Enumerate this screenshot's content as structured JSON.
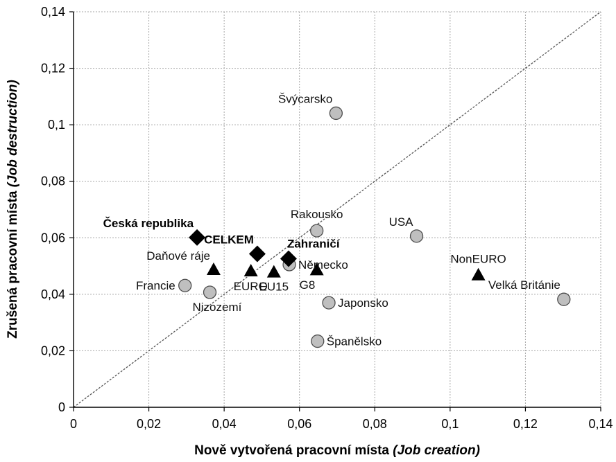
{
  "chart_data": {
    "type": "scatter",
    "xlabel": {
      "main": "Nově vytvořená pracovní místa ",
      "italic": "(Job creation)"
    },
    "ylabel": {
      "main": "Zrušená pracovní místa ",
      "italic": "(Job destruction)"
    },
    "xlim": [
      0,
      0.14
    ],
    "ylim": [
      0,
      0.14
    ],
    "xticks": [
      {
        "value": 0,
        "label": "0"
      },
      {
        "value": 0.02,
        "label": "0,02"
      },
      {
        "value": 0.04,
        "label": "0,04"
      },
      {
        "value": 0.06,
        "label": "0,06"
      },
      {
        "value": 0.08,
        "label": "0,08"
      },
      {
        "value": 0.1,
        "label": "0,1"
      },
      {
        "value": 0.12,
        "label": "0,12"
      },
      {
        "value": 0.14,
        "label": "0,14"
      }
    ],
    "yticks": [
      {
        "value": 0,
        "label": "0"
      },
      {
        "value": 0.02,
        "label": "0,02"
      },
      {
        "value": 0.04,
        "label": "0,04"
      },
      {
        "value": 0.06,
        "label": "0,06"
      },
      {
        "value": 0.08,
        "label": "0,08"
      },
      {
        "value": 0.1,
        "label": "0,1"
      },
      {
        "value": 0.12,
        "label": "0,12"
      },
      {
        "value": 0.14,
        "label": "0,14"
      }
    ],
    "grid": true,
    "diagonal": true,
    "colors": {
      "circle_fill": "#bfbfbf",
      "marker_dark": "#000000",
      "grid": "#a6a6a6"
    },
    "points": [
      {
        "label": "Švýcarsko",
        "x": 0.0697,
        "y": 0.1041,
        "marker": "circle",
        "bold": false,
        "label_pos": "above-left"
      },
      {
        "label": "Rakousko",
        "x": 0.0646,
        "y": 0.0625,
        "marker": "circle",
        "bold": false,
        "label_pos": "above"
      },
      {
        "label": "USA",
        "x": 0.0911,
        "y": 0.0606,
        "marker": "circle",
        "bold": false,
        "label_pos": "above-left"
      },
      {
        "label": "Německo",
        "x": 0.0573,
        "y": 0.0505,
        "marker": "circle",
        "bold": false,
        "label_pos": "right"
      },
      {
        "label": "Francie",
        "x": 0.0296,
        "y": 0.0431,
        "marker": "circle",
        "bold": false,
        "label_pos": "left"
      },
      {
        "label": "Nizozemí",
        "x": 0.0362,
        "y": 0.0407,
        "marker": "circle",
        "bold": false,
        "label_pos": "below-right"
      },
      {
        "label": "Japonsko",
        "x": 0.0678,
        "y": 0.037,
        "marker": "circle",
        "bold": false,
        "label_pos": "right"
      },
      {
        "label": "Španělsko",
        "x": 0.0648,
        "y": 0.0234,
        "marker": "circle",
        "bold": false,
        "label_pos": "right"
      },
      {
        "label": "Velká Británie",
        "x": 0.1302,
        "y": 0.0382,
        "marker": "circle",
        "bold": false,
        "label_pos": "above-left"
      },
      {
        "label": "Česká republika",
        "x": 0.0328,
        "y": 0.0601,
        "marker": "diamond",
        "bold": true,
        "label_pos": "above-left"
      },
      {
        "label": "CELKEM",
        "x": 0.0488,
        "y": 0.0543,
        "marker": "diamond",
        "bold": true,
        "label_pos": "above-left"
      },
      {
        "label": "Zahraničí",
        "x": 0.0571,
        "y": 0.0526,
        "marker": "diamond",
        "bold": true,
        "label_pos": "above-right"
      },
      {
        "label": "Daňové ráje",
        "x": 0.0372,
        "y": 0.0486,
        "marker": "triangle",
        "bold": false,
        "label_pos": "above-left"
      },
      {
        "label": "EURO",
        "x": 0.0471,
        "y": 0.0481,
        "marker": "triangle",
        "bold": false,
        "label_pos": "below-right"
      },
      {
        "label": "EU15",
        "x": 0.0532,
        "y": 0.0477,
        "marker": "triangle",
        "bold": false,
        "label_pos": "below"
      },
      {
        "label": "G8",
        "x": 0.0646,
        "y": 0.0485,
        "marker": "triangle",
        "bold": false,
        "label_pos": "below-right"
      },
      {
        "label": "NonEURO",
        "x": 0.1075,
        "y": 0.0467,
        "marker": "triangle",
        "bold": false,
        "label_pos": "above"
      }
    ]
  }
}
